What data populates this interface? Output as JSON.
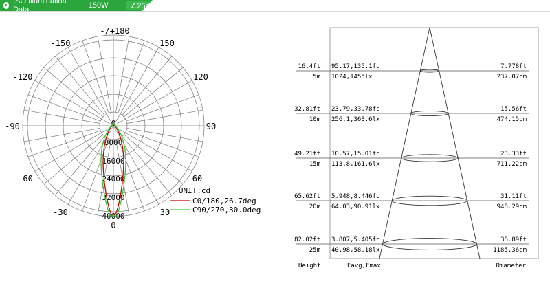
{
  "header": {
    "title": "ISO Illumination  Data",
    "wattage": "150W",
    "beam_angle": "25°",
    "accent_color": "#2aa63c"
  },
  "polar": {
    "angle_labels": [
      "-/+180",
      "-150",
      "150",
      "-120",
      "120",
      "-90",
      "90",
      "-60",
      "60",
      "-30",
      "30",
      "0"
    ],
    "ring_labels": [
      "0",
      "8000",
      "16000",
      "24000",
      "32000",
      "40000"
    ],
    "unit": "UNIT:cd",
    "legend": [
      {
        "label": "C0/180,26.7deg",
        "color": "#cc0000"
      },
      {
        "label": "C90/270,30.0deg",
        "color": "#33cc33"
      }
    ]
  },
  "cone": {
    "rows": [
      {
        "height_ft": "16.4ft",
        "height_m": "5m",
        "eavg_emax_fc": "95.17,135.1fc",
        "eavg_emax_lx": "1024,1455lx",
        "diameter_ft": "7.778ft",
        "diameter_cm": "237.07cm"
      },
      {
        "height_ft": "32.81ft",
        "height_m": "10m",
        "eavg_emax_fc": "23.79,33.78fc",
        "eavg_emax_lx": "256.1,363.6lx",
        "diameter_ft": "15.56ft",
        "diameter_cm": "474.15cm"
      },
      {
        "height_ft": "49.21ft",
        "height_m": "15m",
        "eavg_emax_fc": "10.57,15.01fc",
        "eavg_emax_lx": "113.8,161.6lx",
        "diameter_ft": "23.33ft",
        "diameter_cm": "711.22cm"
      },
      {
        "height_ft": "65.62ft",
        "height_m": "20m",
        "eavg_emax_fc": "5.948,8.446fc",
        "eavg_emax_lx": "64.03,90.91lx",
        "diameter_ft": "31.11ft",
        "diameter_cm": "948.29cm"
      },
      {
        "height_ft": "82.02ft",
        "height_m": "25m",
        "eavg_emax_fc": "3.807,5.405fc",
        "eavg_emax_lx": "40.98,58.18lx",
        "diameter_ft": "38.89ft",
        "diameter_cm": "1185.36cm"
      }
    ],
    "footer": {
      "height": "Height",
      "eavg": "Eavg,Emax",
      "diameter": "Diameter"
    }
  }
}
